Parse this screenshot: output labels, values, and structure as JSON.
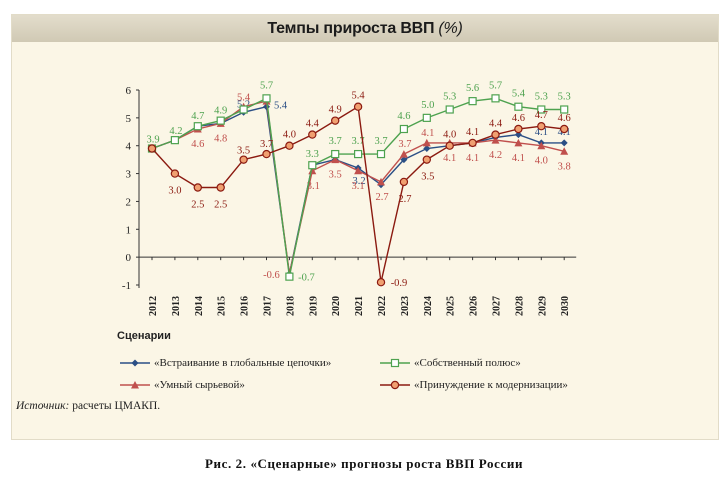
{
  "title": {
    "main": "Темпы прироста ВВП",
    "unit": "(%)"
  },
  "legend": {
    "heading": "Сценарии",
    "items": [
      {
        "label": "«Встраивание в глобальные цепочки»"
      },
      {
        "label": "«Умный сырьевой»"
      },
      {
        "label": "«Собственный полюс»"
      },
      {
        "label": "«Принуждение к модернизации»"
      }
    ]
  },
  "source": {
    "label": "Источник:",
    "text": " расчеты ЦМАКП."
  },
  "caption": "Рис. 2. «Сценарные» прогнозы роста ВВП России",
  "chart_data": {
    "type": "line",
    "title": "Темпы прироста ВВП (%)",
    "xlabel": "",
    "ylabel": "",
    "ylim": [
      -1,
      6
    ],
    "yticks": [
      "-1",
      "0",
      "1",
      "2",
      "3",
      "4",
      "5",
      "6"
    ],
    "grid": false,
    "legend_position": "bottom",
    "x": [
      "2012",
      "2013",
      "2014",
      "2015",
      "2016",
      "2017",
      "2018",
      "2019",
      "2020",
      "2021",
      "2022",
      "2023",
      "2024",
      "2025",
      "2026",
      "2027",
      "2028",
      "2029",
      "2030"
    ],
    "series": [
      {
        "name": "«Встраивание в глобальные цепочки»",
        "color": "#2b4f85",
        "marker": "diamond",
        "values": [
          3.9,
          4.2,
          4.7,
          4.8,
          5.2,
          5.4,
          -0.6,
          3.3,
          3.5,
          3.2,
          2.6,
          3.5,
          3.9,
          4.0,
          4.1,
          4.3,
          4.4,
          4.1,
          4.1
        ],
        "labels": {
          "4": "5.2",
          "5": "5.4",
          "9": "3.2",
          "17": "4.1",
          "18": "4.1"
        }
      },
      {
        "name": "«Умный сырьевой»",
        "color": "#c0504d",
        "marker": "triangle",
        "values": [
          3.9,
          4.2,
          4.6,
          4.8,
          5.4,
          5.6,
          -0.6,
          3.1,
          3.5,
          3.1,
          2.7,
          3.7,
          4.1,
          4.1,
          4.1,
          4.2,
          4.1,
          4.0,
          3.8
        ],
        "labels": {
          "2": "4.6",
          "3": "4.8",
          "4": "5.4",
          "6": "-0.6",
          "7": "3.1",
          "8": "3.5",
          "9": "3.1",
          "10": "2.7",
          "11": "3.7",
          "12": "4.1",
          "13": "4.1",
          "14": "4.1",
          "15": "4.2",
          "16": "4.1",
          "17": "4.0",
          "18": "3.8"
        }
      },
      {
        "name": "«Собственный полюс»",
        "color": "#4ea24f",
        "marker": "square",
        "values": [
          3.9,
          4.2,
          4.7,
          4.9,
          5.3,
          5.7,
          -0.7,
          3.3,
          3.7,
          3.7,
          3.7,
          4.6,
          5.0,
          5.3,
          5.6,
          5.7,
          5.4,
          5.3,
          5.3
        ],
        "labels": {
          "0": "3.9",
          "1": "4.2",
          "2": "4.7",
          "3": "4.9",
          "5": "5.7",
          "6": "-0.7",
          "7": "3.3",
          "8": "3.7",
          "9": "3.7",
          "10": "3.7",
          "11": "4.6",
          "12": "5.0",
          "13": "5.3",
          "14": "5.6",
          "15": "5.7",
          "16": "5.4",
          "17": "5.3",
          "18": "5.3"
        }
      },
      {
        "name": "«Принуждение к модернизации»",
        "color": "#8b1a10",
        "marker": "circle",
        "values": [
          3.9,
          3.0,
          2.5,
          2.5,
          3.5,
          3.7,
          4.0,
          4.4,
          4.9,
          5.4,
          -0.9,
          2.7,
          3.5,
          4.0,
          4.1,
          4.4,
          4.6,
          4.7,
          4.6
        ],
        "labels": {
          "1": "3.0",
          "2": "2.5",
          "3": "2.5",
          "4": "3.5",
          "5": "3.7",
          "6": "4.0",
          "7": "4.4",
          "8": "4.9",
          "9": "5.4",
          "10": "-0.9",
          "11": "2.7",
          "12": "3.5",
          "13": "4.0",
          "14": "4.1",
          "15": "4.4",
          "16": "4.6",
          "17": "4.7",
          "18": "4.6"
        }
      }
    ]
  }
}
